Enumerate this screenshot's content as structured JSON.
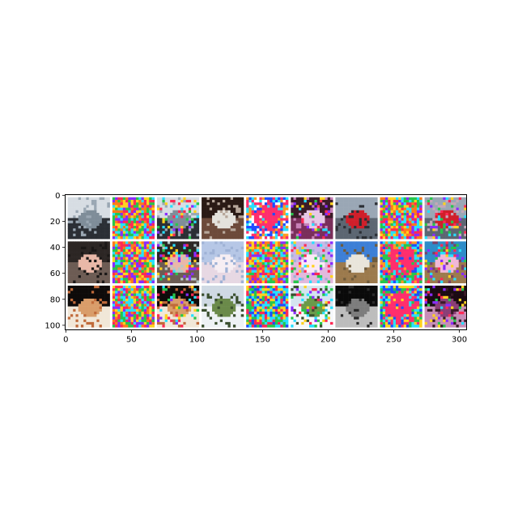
{
  "chart_data": {
    "type": "image-grid",
    "title": "",
    "xlabel": "",
    "ylabel": "",
    "xlim": [
      -0.5,
      305.5
    ],
    "ylim": [
      103.5,
      -0.5
    ],
    "y_inverted": true,
    "grid": false,
    "x_ticks": [
      0,
      50,
      100,
      150,
      200,
      250,
      300
    ],
    "y_ticks": [
      0,
      20,
      40,
      60,
      80,
      100
    ],
    "x_tick_labels": [
      "0",
      "50",
      "100",
      "150",
      "200",
      "250",
      "300"
    ],
    "y_tick_labels": [
      "0",
      "20",
      "40",
      "60",
      "80",
      "100"
    ],
    "grid_layout": {
      "rows": 3,
      "cols": 9,
      "tile_size": 32,
      "padding": 2
    },
    "tiles": [
      {
        "row": 0,
        "col": 0,
        "kind": "photo",
        "subject": "car",
        "colors": [
          "#d7dde3",
          "#7f8d99",
          "#2b2f35",
          "#9aa7b3"
        ]
      },
      {
        "row": 0,
        "col": 1,
        "kind": "noise",
        "colors": [
          "#ff2a55",
          "#26e0ff",
          "#ffd21f",
          "#27c64b",
          "#8a2bff",
          "#ff7a1a"
        ]
      },
      {
        "row": 0,
        "col": 2,
        "kind": "photo-noisy",
        "subject": "car",
        "colors": [
          "#d7dde3",
          "#7f8d99",
          "#2b2f35",
          "#9aa7b3"
        ]
      },
      {
        "row": 0,
        "col": 3,
        "kind": "photo",
        "subject": "horse-head",
        "colors": [
          "#2a1a15",
          "#e4e2dc",
          "#6d4a3a",
          "#b7a79a"
        ]
      },
      {
        "row": 0,
        "col": 4,
        "kind": "noise-blob",
        "colors": [
          "#ff2e6d",
          "#1f4dff",
          "#27e0ff",
          "#ff9a24",
          "#ffffff"
        ]
      },
      {
        "row": 0,
        "col": 5,
        "kind": "photo-noisy",
        "subject": "horse-head",
        "colors": [
          "#3a1b28",
          "#e7c8e6",
          "#7a2f5b",
          "#c780b7"
        ]
      },
      {
        "row": 0,
        "col": 6,
        "kind": "photo",
        "subject": "red-car",
        "colors": [
          "#9aa7b5",
          "#d01f2a",
          "#5c6672",
          "#2b2f35"
        ]
      },
      {
        "row": 0,
        "col": 7,
        "kind": "noise",
        "colors": [
          "#ff2a55",
          "#26e0ff",
          "#ffd21f",
          "#27c64b",
          "#8a2bff",
          "#ff7a1a"
        ]
      },
      {
        "row": 0,
        "col": 8,
        "kind": "photo-noisy",
        "subject": "red-car",
        "colors": [
          "#9aa7b5",
          "#d01f2a",
          "#5c6672",
          "#c7a7b8"
        ]
      },
      {
        "row": 1,
        "col": 0,
        "kind": "photo",
        "subject": "dog",
        "colors": [
          "#2c2624",
          "#e9b8a8",
          "#6d5c54",
          "#1a1716"
        ]
      },
      {
        "row": 1,
        "col": 1,
        "kind": "noise",
        "colors": [
          "#ff2a55",
          "#26e0ff",
          "#ffd21f",
          "#27c64b",
          "#8a2bff",
          "#ff7a1a"
        ]
      },
      {
        "row": 1,
        "col": 2,
        "kind": "photo-noisy",
        "subject": "dog",
        "colors": [
          "#2c2624",
          "#e9b8a8",
          "#6d5c54",
          "#b7c7c7"
        ]
      },
      {
        "row": 1,
        "col": 3,
        "kind": "photo",
        "subject": "white-cat",
        "colors": [
          "#b6c7e6",
          "#f6eef3",
          "#e7d8e3",
          "#9fb2d6"
        ]
      },
      {
        "row": 1,
        "col": 4,
        "kind": "noise",
        "colors": [
          "#ff2a55",
          "#26e0ff",
          "#ffd21f",
          "#27c64b",
          "#8a2bff",
          "#ff7a1a"
        ]
      },
      {
        "row": 1,
        "col": 5,
        "kind": "photo-noisy",
        "subject": "white-cat",
        "colors": [
          "#c9b7e6",
          "#fbe9f6",
          "#e2b9dd",
          "#9fb2d6"
        ]
      },
      {
        "row": 1,
        "col": 6,
        "kind": "photo",
        "subject": "white-horse",
        "colors": [
          "#3d7fd6",
          "#e9e5db",
          "#9c7a4d",
          "#6e5a3b"
        ]
      },
      {
        "row": 1,
        "col": 7,
        "kind": "noise-blob",
        "colors": [
          "#ff2e6d",
          "#1f4dff",
          "#27e0ff",
          "#ff9a24",
          "#27c64b"
        ]
      },
      {
        "row": 1,
        "col": 8,
        "kind": "photo-noisy",
        "subject": "pink-horse",
        "colors": [
          "#2e8cc8",
          "#f0b8d8",
          "#9c7a4d",
          "#7a3f66"
        ]
      },
      {
        "row": 2,
        "col": 0,
        "kind": "photo",
        "subject": "dog",
        "colors": [
          "#0e0b0a",
          "#d99d6a",
          "#f1e7d8",
          "#c06a3a"
        ]
      },
      {
        "row": 2,
        "col": 1,
        "kind": "noise",
        "colors": [
          "#ff2a55",
          "#26e0ff",
          "#ffd21f",
          "#27c64b",
          "#8a2bff",
          "#ff7a1a"
        ]
      },
      {
        "row": 2,
        "col": 2,
        "kind": "photo-noisy",
        "subject": "dog",
        "colors": [
          "#0e0b0a",
          "#d99d6a",
          "#f1e7d8",
          "#c06a3a"
        ]
      },
      {
        "row": 2,
        "col": 3,
        "kind": "photo",
        "subject": "airplane",
        "colors": [
          "#cfd9e3",
          "#6b8a4a",
          "#eef2f5",
          "#3a4f2e"
        ]
      },
      {
        "row": 2,
        "col": 4,
        "kind": "noise",
        "colors": [
          "#27e0ff",
          "#1f4dff",
          "#ffd21f",
          "#ff2a55",
          "#27c64b"
        ]
      },
      {
        "row": 2,
        "col": 5,
        "kind": "photo-noisy",
        "subject": "airplane",
        "colors": [
          "#d4e4ef",
          "#6b9a4a",
          "#f5f7fa",
          "#3a4f2e"
        ]
      },
      {
        "row": 2,
        "col": 6,
        "kind": "photo",
        "subject": "dark-horse",
        "colors": [
          "#0a0a0a",
          "#7d7d7d",
          "#bdbdbd",
          "#2a2a2a"
        ]
      },
      {
        "row": 2,
        "col": 7,
        "kind": "noise-blob",
        "colors": [
          "#ff2e6d",
          "#1f4dff",
          "#27e0ff",
          "#ffd21f",
          "#27c64b"
        ]
      },
      {
        "row": 2,
        "col": 8,
        "kind": "photo-noisy",
        "subject": "dark-horse",
        "colors": [
          "#1a0a12",
          "#8a3f77",
          "#c78db7",
          "#3a1b28"
        ]
      }
    ]
  }
}
